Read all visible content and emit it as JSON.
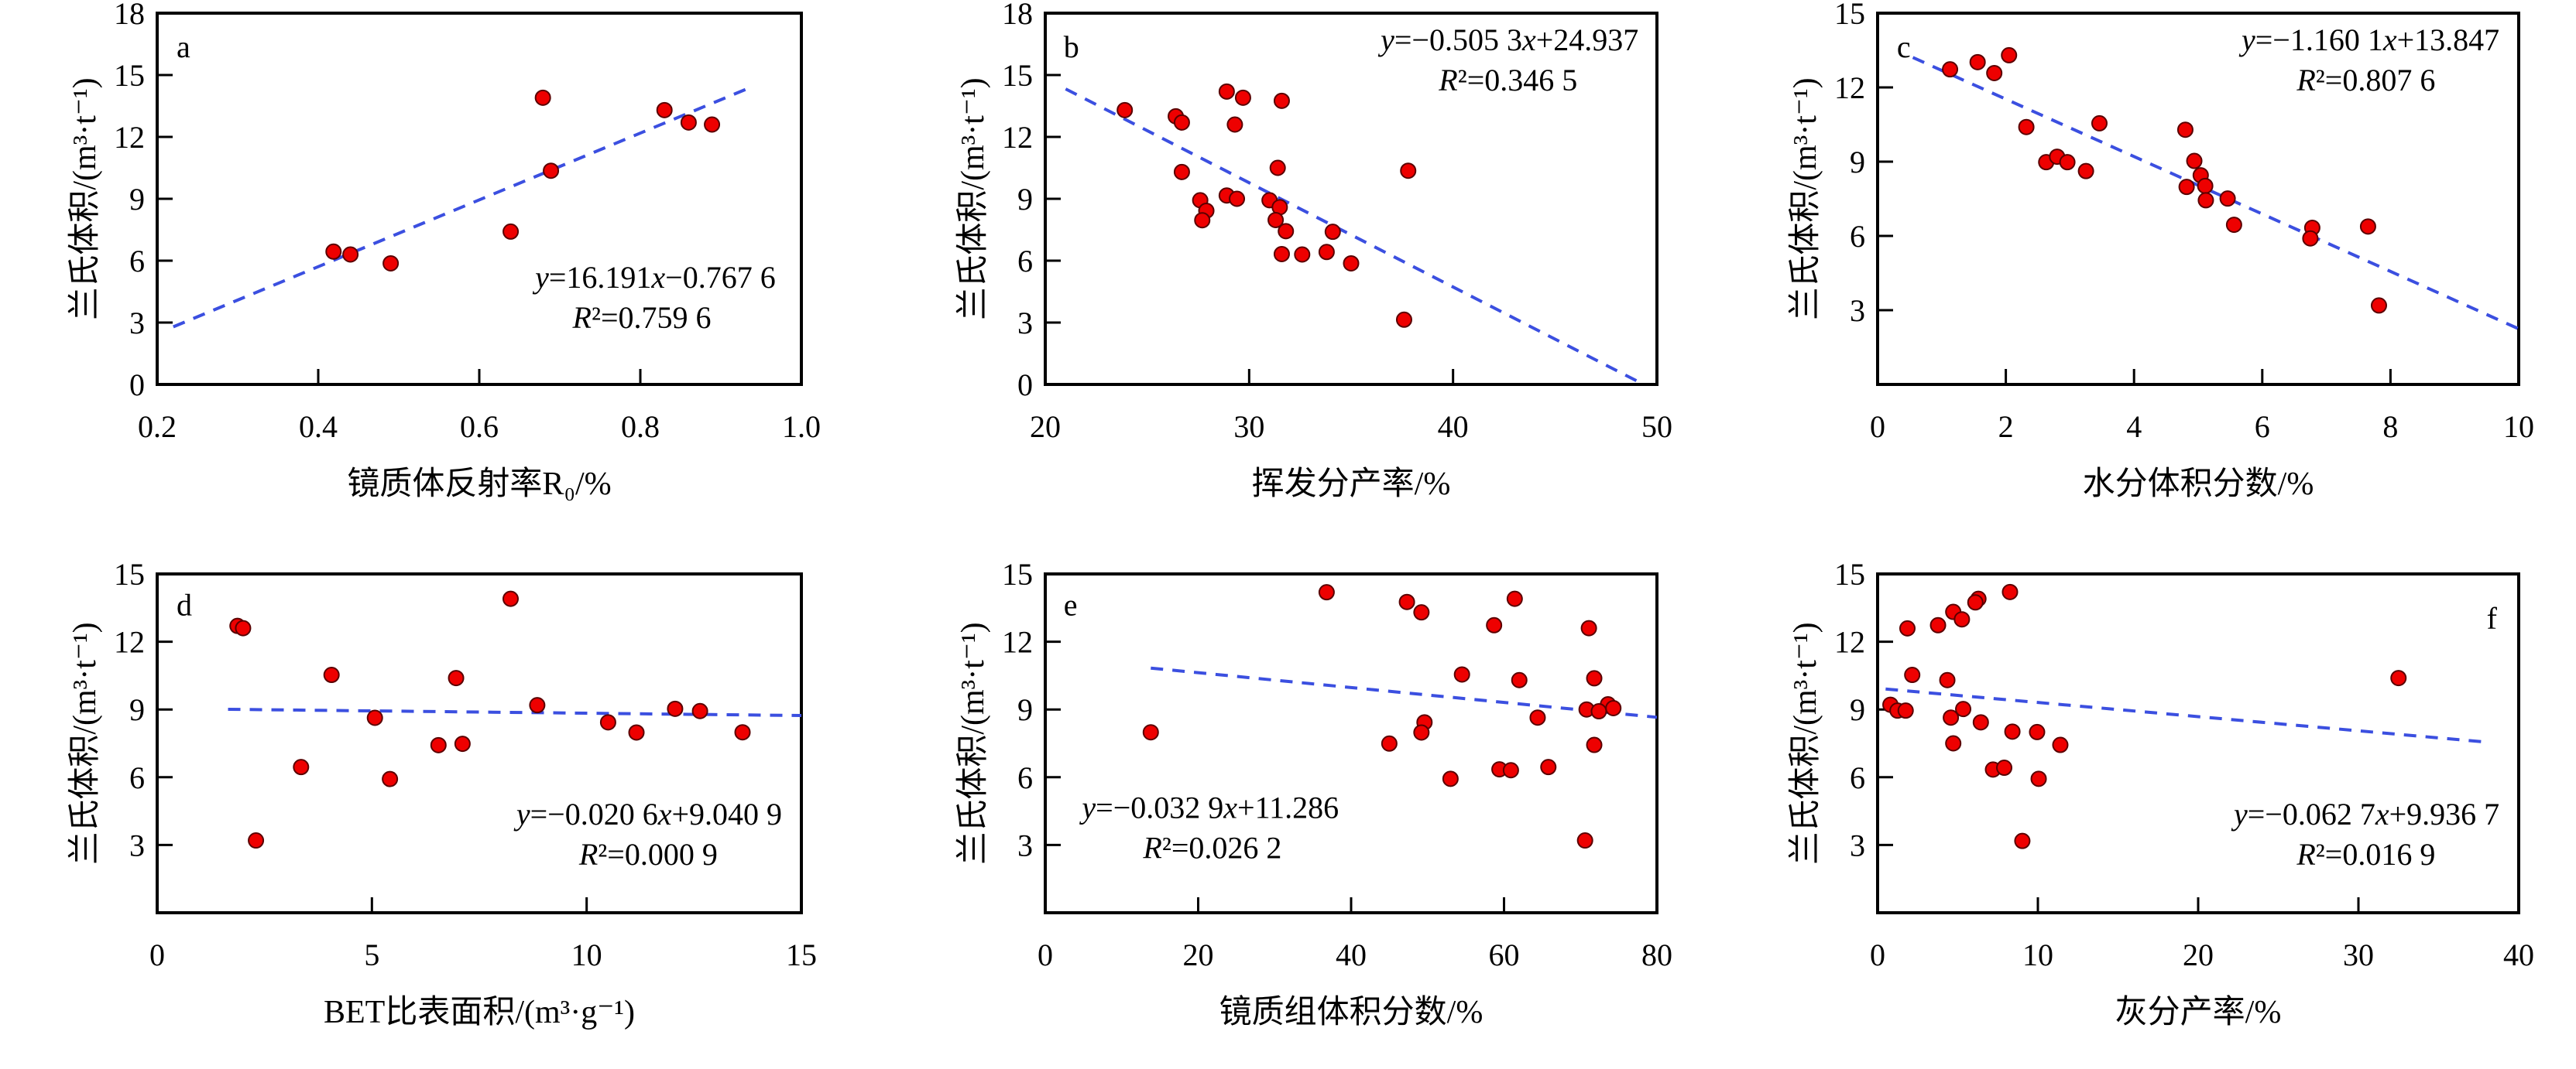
{
  "colors": {
    "point_fill": "#ee0000",
    "point_stroke": "#5a0000",
    "fit_line": "#3b4fe0",
    "axis": "#000000"
  },
  "chart_data": [
    {
      "type": "scatter",
      "panel_label": "a",
      "xlabel": "镜质体反射率R₀/%",
      "ylabel": "兰氏体积/(m³·t⁻¹)",
      "xlim": [
        0.2,
        1.0
      ],
      "ylim": [
        0,
        18
      ],
      "xticks": [
        "0.2",
        "0.4",
        "0.6",
        "0.8",
        "1.0"
      ],
      "yticks": [
        "0",
        "3",
        "6",
        "9",
        "12",
        "15",
        "18"
      ],
      "equation": "y=16.191x−0.767 6",
      "r2": "R²=0.759 6",
      "fit": {
        "slope": 16.191,
        "intercept": -0.7676,
        "x_range": [
          0.22,
          0.94
        ]
      },
      "points": [
        [
          0.679,
          13.9
        ],
        [
          0.83,
          13.3
        ],
        [
          0.86,
          12.7
        ],
        [
          0.889,
          12.6
        ],
        [
          0.689,
          10.36
        ],
        [
          0.639,
          7.41
        ],
        [
          0.419,
          6.44
        ],
        [
          0.44,
          6.3
        ],
        [
          0.49,
          5.87
        ]
      ]
    },
    {
      "type": "scatter",
      "panel_label": "b",
      "xlabel": "挥发分产率/%",
      "ylabel": "兰氏体积/(m³·t⁻¹)",
      "xlim": [
        20,
        50
      ],
      "ylim": [
        0,
        18
      ],
      "xticks": [
        "20",
        "30",
        "40",
        "50"
      ],
      "yticks": [
        "0",
        "3",
        "6",
        "9",
        "12",
        "15",
        "18"
      ],
      "equation": "y=−0.505 3x+24.937",
      "r2": "R²=0.346 5",
      "fit": {
        "slope": -0.5053,
        "intercept": 24.937,
        "x_range": [
          21,
          49
        ]
      },
      "points": [
        [
          23.9,
          13.3
        ],
        [
          26.4,
          13.0
        ],
        [
          26.7,
          12.7
        ],
        [
          28.9,
          14.2
        ],
        [
          29.7,
          13.9
        ],
        [
          31.6,
          13.75
        ],
        [
          29.3,
          12.6
        ],
        [
          26.7,
          10.3
        ],
        [
          31.4,
          10.5
        ],
        [
          37.8,
          10.36
        ],
        [
          27.6,
          8.93
        ],
        [
          28.9,
          9.16
        ],
        [
          29.4,
          9.0
        ],
        [
          31.0,
          8.93
        ],
        [
          31.5,
          8.59
        ],
        [
          27.9,
          8.42
        ],
        [
          27.7,
          7.96
        ],
        [
          31.3,
          7.97
        ],
        [
          31.8,
          7.43
        ],
        [
          34.1,
          7.4
        ],
        [
          31.6,
          6.32
        ],
        [
          32.6,
          6.3
        ],
        [
          33.8,
          6.42
        ],
        [
          35.0,
          5.87
        ],
        [
          37.6,
          3.14
        ]
      ]
    },
    {
      "type": "scatter",
      "panel_label": "c",
      "xlabel": "水分体积分数/%",
      "ylabel": "兰氏体积/(m³·t⁻¹)",
      "xlim": [
        0,
        10
      ],
      "ylim": [
        0,
        15
      ],
      "xticks": [
        "0",
        "2",
        "4",
        "6",
        "8",
        "10"
      ],
      "yticks": [
        "",
        "3",
        "6",
        "9",
        "12",
        "15"
      ],
      "equation": "y=−1.160 1x+13.847",
      "r2": "R²=0.807 6",
      "fit": {
        "slope": -1.1601,
        "intercept": 13.847,
        "x_range": [
          0.55,
          10
        ]
      },
      "points": [
        [
          1.13,
          12.73
        ],
        [
          1.56,
          13.02
        ],
        [
          1.82,
          12.58
        ],
        [
          2.05,
          13.3
        ],
        [
          2.32,
          10.4
        ],
        [
          3.46,
          10.55
        ],
        [
          2.63,
          8.98
        ],
        [
          2.8,
          9.2
        ],
        [
          2.96,
          8.98
        ],
        [
          3.25,
          8.62
        ],
        [
          4.8,
          10.29
        ],
        [
          4.94,
          9.03
        ],
        [
          5.04,
          8.45
        ],
        [
          5.11,
          8.02
        ],
        [
          4.82,
          7.98
        ],
        [
          5.12,
          7.44
        ],
        [
          5.46,
          7.51
        ],
        [
          5.56,
          6.45
        ],
        [
          6.78,
          6.33
        ],
        [
          6.75,
          5.9
        ],
        [
          7.65,
          6.38
        ],
        [
          7.82,
          3.19
        ]
      ]
    },
    {
      "type": "scatter",
      "panel_label": "d",
      "xlabel": "BET比表面积/(m³·g⁻¹)",
      "ylabel": "兰氏体积/(m³·t⁻¹)",
      "xlim": [
        0,
        15
      ],
      "ylim": [
        0,
        15
      ],
      "xticks": [
        "0",
        "5",
        "10",
        "15"
      ],
      "yticks": [
        "",
        "3",
        "6",
        "9",
        "12",
        "15"
      ],
      "equation": "y=−0.020 6x+9.040 9",
      "r2": "R²=0.000 9",
      "fit": {
        "slope": -0.0206,
        "intercept": 9.0409,
        "x_range": [
          1.65,
          15
        ]
      },
      "points": [
        [
          1.87,
          12.7
        ],
        [
          2.0,
          12.6
        ],
        [
          8.23,
          13.9
        ],
        [
          4.06,
          10.53
        ],
        [
          6.96,
          10.39
        ],
        [
          8.85,
          9.19
        ],
        [
          12.06,
          9.03
        ],
        [
          12.64,
          8.93
        ],
        [
          5.07,
          8.63
        ],
        [
          10.5,
          8.43
        ],
        [
          11.16,
          7.98
        ],
        [
          13.63,
          7.99
        ],
        [
          6.55,
          7.42
        ],
        [
          7.11,
          7.48
        ],
        [
          3.35,
          6.45
        ],
        [
          5.42,
          5.92
        ],
        [
          2.3,
          3.2
        ]
      ]
    },
    {
      "type": "scatter",
      "panel_label": "e",
      "xlabel": "镜质组体积分数/%",
      "ylabel": "兰氏体积/(m³·t⁻¹)",
      "xlim": [
        0,
        80
      ],
      "ylim": [
        0,
        15
      ],
      "xticks": [
        "0",
        "20",
        "40",
        "60",
        "80"
      ],
      "yticks": [
        "",
        "3",
        "6",
        "9",
        "12",
        "15"
      ],
      "equation": "y=−0.032 9x+11.286",
      "r2": "R²=0.026 2",
      "fit": {
        "slope": -0.0329,
        "intercept": 11.286,
        "x_range": [
          13.8,
          80
        ]
      },
      "points": [
        [
          36.8,
          14.19
        ],
        [
          47.3,
          13.76
        ],
        [
          49.2,
          13.3
        ],
        [
          61.4,
          13.9
        ],
        [
          58.7,
          12.73
        ],
        [
          71.1,
          12.6
        ],
        [
          54.5,
          10.55
        ],
        [
          62.0,
          10.3
        ],
        [
          71.8,
          10.38
        ],
        [
          70.8,
          9.0
        ],
        [
          73.6,
          9.23
        ],
        [
          72.4,
          8.92
        ],
        [
          74.3,
          9.06
        ],
        [
          64.4,
          8.64
        ],
        [
          49.6,
          8.43
        ],
        [
          49.2,
          7.98
        ],
        [
          13.8,
          7.99
        ],
        [
          45.0,
          7.49
        ],
        [
          71.8,
          7.43
        ],
        [
          59.4,
          6.35
        ],
        [
          60.9,
          6.31
        ],
        [
          65.8,
          6.45
        ],
        [
          53.0,
          5.93
        ],
        [
          70.6,
          3.2
        ]
      ]
    },
    {
      "type": "scatter",
      "panel_label": "f",
      "xlabel": "灰分产率/%",
      "ylabel": "兰氏体积/(m³·t⁻¹)",
      "xlim": [
        0,
        40
      ],
      "ylim": [
        0,
        15
      ],
      "xticks": [
        "0",
        "10",
        "20",
        "30",
        "40"
      ],
      "yticks": [
        "",
        "3",
        "6",
        "9",
        "12",
        "15"
      ],
      "equation": "y=−0.062 7x+9.936 7",
      "r2": "R²=0.016 9",
      "fit": {
        "slope": -0.0627,
        "intercept": 9.9367,
        "x_range": [
          0.5,
          38
        ]
      },
      "points": [
        [
          8.26,
          14.2
        ],
        [
          6.29,
          13.9
        ],
        [
          6.1,
          13.74
        ],
        [
          4.72,
          13.32
        ],
        [
          5.26,
          12.99
        ],
        [
          3.77,
          12.73
        ],
        [
          1.86,
          12.59
        ],
        [
          2.16,
          10.53
        ],
        [
          4.35,
          10.3
        ],
        [
          32.5,
          10.39
        ],
        [
          0.8,
          9.21
        ],
        [
          1.24,
          8.95
        ],
        [
          1.75,
          8.95
        ],
        [
          5.34,
          9.02
        ],
        [
          4.57,
          8.64
        ],
        [
          6.44,
          8.43
        ],
        [
          8.41,
          8.02
        ],
        [
          9.95,
          8.0
        ],
        [
          11.4,
          7.43
        ],
        [
          4.72,
          7.5
        ],
        [
          7.2,
          6.34
        ],
        [
          7.9,
          6.42
        ],
        [
          10.05,
          5.93
        ],
        [
          9.03,
          3.18
        ]
      ]
    }
  ]
}
